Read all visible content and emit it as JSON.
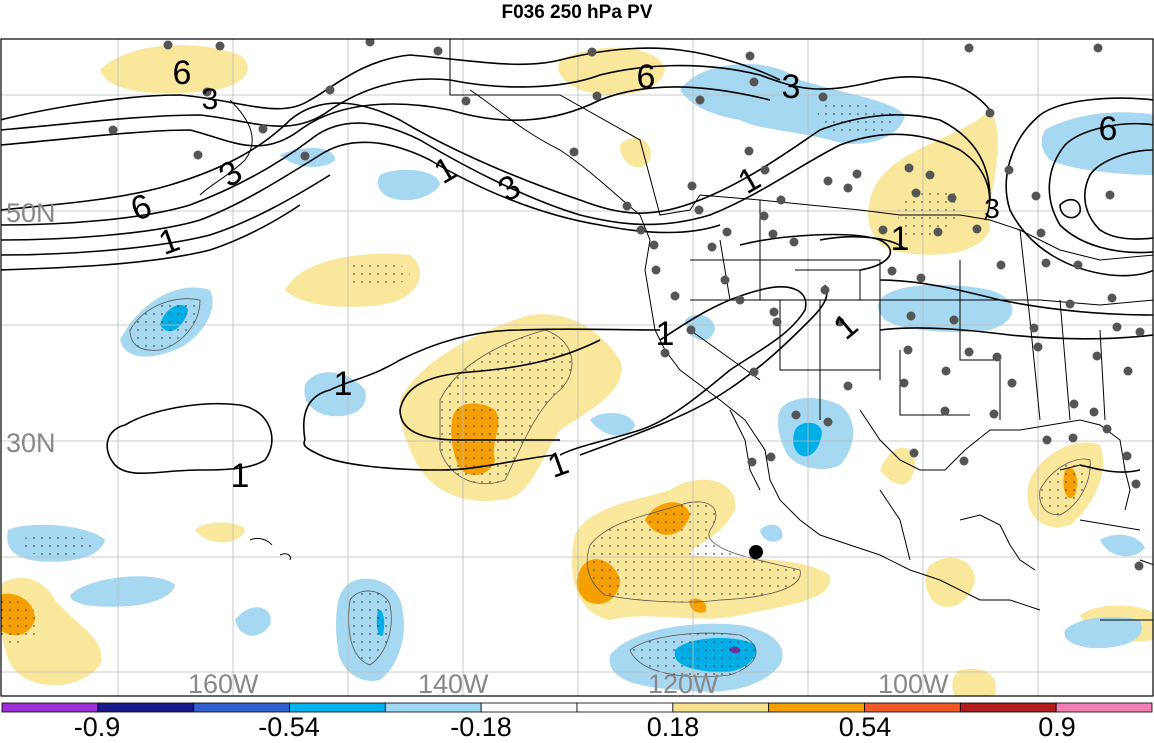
{
  "title": "F036 250 hPa PV",
  "lat_labels": [
    "50N",
    "30N"
  ],
  "lon_labels": [
    "160W",
    "140W",
    "120W",
    "100W"
  ],
  "contour_labels": [
    "6",
    "3",
    "3",
    "6",
    "1",
    "6",
    "3",
    "1",
    "3",
    "6",
    "1",
    "3",
    "1",
    "1",
    "1",
    "1",
    "1",
    "1",
    "1"
  ],
  "colorbar": {
    "colors": [
      "#9b30d6",
      "#1a1a8c",
      "#2f5fcf",
      "#00b3ee",
      "#9fd8f5",
      "#ffffff",
      "#ffffff",
      "#f7e08c",
      "#f5a000",
      "#f05a28",
      "#b01e1e",
      "#f37fb4"
    ],
    "tick_labels": [
      "-0.9",
      "-0.54",
      "-0.18",
      "0.18",
      "0.54",
      "0.9"
    ]
  },
  "colors": {
    "positive_light": "#f9e79b",
    "positive_mid": "#f5a000",
    "negative_light": "#a6d8f2",
    "negative_mid": "#00aee8",
    "stations": "#555555"
  }
}
